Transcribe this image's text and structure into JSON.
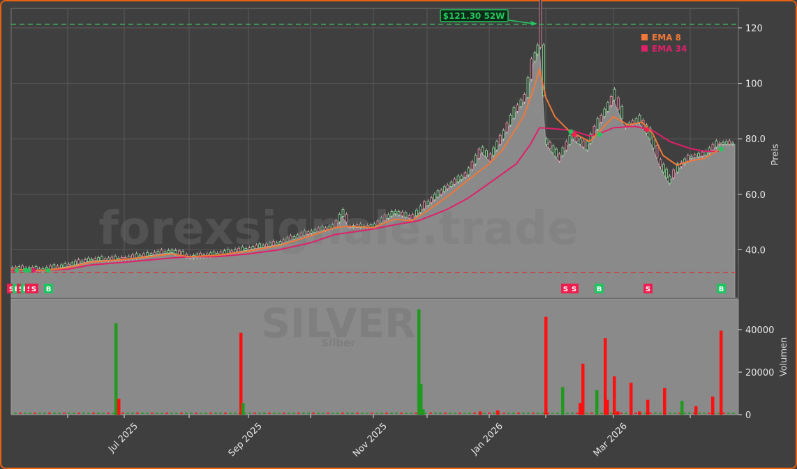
{
  "chart_data": {
    "type": "candlestick",
    "title": "SILVER",
    "subtitle": "Silber",
    "watermark": "forexsignale.trade",
    "annotation": {
      "text": "$121.30 52W",
      "value": 121.3,
      "color": "#22c55e"
    },
    "price_axis": {
      "label": "Preis",
      "ticks": [
        "40.0",
        "60.0",
        "80.0",
        "100",
        "120"
      ],
      "tick_values": [
        40,
        60,
        80,
        100,
        120
      ],
      "ylim": [
        29,
        126
      ]
    },
    "volume_axis": {
      "label": "Volumen",
      "ticks": [
        "0",
        "20000",
        "40000"
      ],
      "tick_values": [
        0,
        20000,
        40000
      ],
      "ylim": [
        0,
        50000
      ]
    },
    "x_axis": {
      "tick_labels": [
        "Jul 2025",
        "Sep 2025",
        "Nov 2025",
        "Jan 2026",
        "Mar 2026"
      ]
    },
    "legend": [
      {
        "label": "EMA 8",
        "color": "#f07838"
      },
      {
        "label": "EMA 34",
        "color": "#e0206a"
      }
    ],
    "reference_lines": [
      {
        "name": "52w-high",
        "value": 121.3,
        "color": "#3dab5a",
        "style": "dashed"
      },
      {
        "name": "52w-low",
        "value": 31.5,
        "color": "#d03a3a",
        "style": "dashed"
      }
    ],
    "price_series": [
      {
        "x": 16,
        "p": 33
      },
      {
        "x": 60,
        "p": 32.5
      },
      {
        "x": 97,
        "p": 34
      },
      {
        "x": 130,
        "p": 36
      },
      {
        "x": 178,
        "p": 36.5
      },
      {
        "x": 215,
        "p": 38
      },
      {
        "x": 245,
        "p": 39
      },
      {
        "x": 271,
        "p": 37
      },
      {
        "x": 310,
        "p": 38
      },
      {
        "x": 356,
        "p": 40
      },
      {
        "x": 400,
        "p": 42
      },
      {
        "x": 445,
        "p": 46
      },
      {
        "x": 480,
        "p": 48
      },
      {
        "x": 490,
        "p": 52
      },
      {
        "x": 500,
        "p": 48
      },
      {
        "x": 535,
        "p": 48
      },
      {
        "x": 565,
        "p": 53
      },
      {
        "x": 590,
        "p": 51
      },
      {
        "x": 612,
        "p": 56
      },
      {
        "x": 640,
        "p": 62
      },
      {
        "x": 670,
        "p": 67
      },
      {
        "x": 690,
        "p": 75
      },
      {
        "x": 701,
        "p": 72
      },
      {
        "x": 720,
        "p": 80
      },
      {
        "x": 740,
        "p": 90
      },
      {
        "x": 755,
        "p": 95
      },
      {
        "x": 765,
        "p": 108
      },
      {
        "x": 773,
        "p": 113
      },
      {
        "x": 782,
        "p": 78
      },
      {
        "x": 800,
        "p": 72
      },
      {
        "x": 820,
        "p": 80
      },
      {
        "x": 840,
        "p": 76
      },
      {
        "x": 860,
        "p": 86
      },
      {
        "x": 879,
        "p": 94
      },
      {
        "x": 895,
        "p": 84
      },
      {
        "x": 915,
        "p": 86
      },
      {
        "x": 930,
        "p": 80
      },
      {
        "x": 945,
        "p": 70
      },
      {
        "x": 958,
        "p": 64
      },
      {
        "x": 975,
        "p": 70
      },
      {
        "x": 989,
        "p": 73
      },
      {
        "x": 1010,
        "p": 74
      },
      {
        "x": 1030,
        "p": 78
      },
      {
        "x": 1053,
        "p": 78
      }
    ],
    "ema8": [
      {
        "x": 16,
        "p": 33
      },
      {
        "x": 60,
        "p": 32.5
      },
      {
        "x": 97,
        "p": 33.5
      },
      {
        "x": 130,
        "p": 35.5
      },
      {
        "x": 178,
        "p": 36.5
      },
      {
        "x": 215,
        "p": 37.5
      },
      {
        "x": 245,
        "p": 38.5
      },
      {
        "x": 271,
        "p": 37.5
      },
      {
        "x": 310,
        "p": 38
      },
      {
        "x": 356,
        "p": 39.5
      },
      {
        "x": 400,
        "p": 41.5
      },
      {
        "x": 445,
        "p": 45
      },
      {
        "x": 480,
        "p": 48
      },
      {
        "x": 500,
        "p": 48.5
      },
      {
        "x": 535,
        "p": 48
      },
      {
        "x": 565,
        "p": 51
      },
      {
        "x": 590,
        "p": 50.5
      },
      {
        "x": 612,
        "p": 54
      },
      {
        "x": 640,
        "p": 59
      },
      {
        "x": 670,
        "p": 65
      },
      {
        "x": 701,
        "p": 71
      },
      {
        "x": 720,
        "p": 76
      },
      {
        "x": 750,
        "p": 88
      },
      {
        "x": 762,
        "p": 96
      },
      {
        "x": 773,
        "p": 105
      },
      {
        "x": 782,
        "p": 95
      },
      {
        "x": 795,
        "p": 88
      },
      {
        "x": 815,
        "p": 83
      },
      {
        "x": 830,
        "p": 81
      },
      {
        "x": 845,
        "p": 79
      },
      {
        "x": 860,
        "p": 83
      },
      {
        "x": 879,
        "p": 88
      },
      {
        "x": 900,
        "p": 85
      },
      {
        "x": 920,
        "p": 86
      },
      {
        "x": 935,
        "p": 82
      },
      {
        "x": 950,
        "p": 74
      },
      {
        "x": 970,
        "p": 70.5
      },
      {
        "x": 989,
        "p": 72
      },
      {
        "x": 1010,
        "p": 73
      },
      {
        "x": 1030,
        "p": 76
      }
    ],
    "ema34": [
      {
        "x": 16,
        "p": 32.5
      },
      {
        "x": 60,
        "p": 32.5
      },
      {
        "x": 97,
        "p": 33
      },
      {
        "x": 130,
        "p": 34.5
      },
      {
        "x": 178,
        "p": 35.5
      },
      {
        "x": 245,
        "p": 37
      },
      {
        "x": 271,
        "p": 37.5
      },
      {
        "x": 310,
        "p": 37.5
      },
      {
        "x": 356,
        "p": 38.5
      },
      {
        "x": 400,
        "p": 40
      },
      {
        "x": 445,
        "p": 42.5
      },
      {
        "x": 480,
        "p": 45.5
      },
      {
        "x": 535,
        "p": 47.5
      },
      {
        "x": 565,
        "p": 49
      },
      {
        "x": 600,
        "p": 50.5
      },
      {
        "x": 640,
        "p": 54.5
      },
      {
        "x": 670,
        "p": 58.5
      },
      {
        "x": 701,
        "p": 64
      },
      {
        "x": 740,
        "p": 71
      },
      {
        "x": 760,
        "p": 78
      },
      {
        "x": 773,
        "p": 84
      },
      {
        "x": 800,
        "p": 83.5
      },
      {
        "x": 820,
        "p": 83
      },
      {
        "x": 845,
        "p": 81
      },
      {
        "x": 860,
        "p": 82
      },
      {
        "x": 879,
        "p": 84
      },
      {
        "x": 910,
        "p": 84.5
      },
      {
        "x": 935,
        "p": 83
      },
      {
        "x": 960,
        "p": 79
      },
      {
        "x": 989,
        "p": 76.5
      },
      {
        "x": 1010,
        "p": 75.5
      },
      {
        "x": 1030,
        "p": 75.5
      }
    ],
    "signals": [
      {
        "type": "S",
        "x": 16
      },
      {
        "type": "B",
        "x": 24
      },
      {
        "type": "S",
        "x": 30
      },
      {
        "type": "B",
        "x": 36
      },
      {
        "type": "S",
        "x": 42
      },
      {
        "type": "S",
        "x": 48
      },
      {
        "type": "B",
        "x": 69
      },
      {
        "type": "S",
        "x": 810
      },
      {
        "type": "S",
        "x": 822
      },
      {
        "type": "B",
        "x": 858
      },
      {
        "type": "S",
        "x": 928
      },
      {
        "type": "B",
        "x": 1033
      }
    ],
    "volume_bars": [
      {
        "x": 166,
        "v": 43000,
        "c": "g"
      },
      {
        "x": 170,
        "v": 7500,
        "c": "r"
      },
      {
        "x": 345,
        "v": 38500,
        "c": "r"
      },
      {
        "x": 348,
        "v": 5500,
        "c": "g"
      },
      {
        "x": 600,
        "v": 49500,
        "c": "g"
      },
      {
        "x": 603,
        "v": 14500,
        "c": "g"
      },
      {
        "x": 606,
        "v": 2500,
        "c": "g"
      },
      {
        "x": 688,
        "v": 1500,
        "c": "r"
      },
      {
        "x": 713,
        "v": 2000,
        "c": "r"
      },
      {
        "x": 782,
        "v": 46000,
        "c": "r"
      },
      {
        "x": 806,
        "v": 13000,
        "c": "g"
      },
      {
        "x": 831,
        "v": 5500,
        "c": "r"
      },
      {
        "x": 835,
        "v": 24000,
        "c": "r"
      },
      {
        "x": 855,
        "v": 11500,
        "c": "g"
      },
      {
        "x": 867,
        "v": 36000,
        "c": "r"
      },
      {
        "x": 870,
        "v": 7000,
        "c": "r"
      },
      {
        "x": 880,
        "v": 18000,
        "c": "r"
      },
      {
        "x": 885,
        "v": 1500,
        "c": "r"
      },
      {
        "x": 904,
        "v": 15000,
        "c": "r"
      },
      {
        "x": 916,
        "v": 1500,
        "c": "r"
      },
      {
        "x": 928,
        "v": 7000,
        "c": "r"
      },
      {
        "x": 952,
        "v": 12500,
        "c": "r"
      },
      {
        "x": 977,
        "v": 6500,
        "c": "g"
      },
      {
        "x": 997,
        "v": 4000,
        "c": "r"
      },
      {
        "x": 1021,
        "v": 8500,
        "c": "r"
      },
      {
        "x": 1033,
        "v": 39500,
        "c": "r"
      }
    ]
  }
}
